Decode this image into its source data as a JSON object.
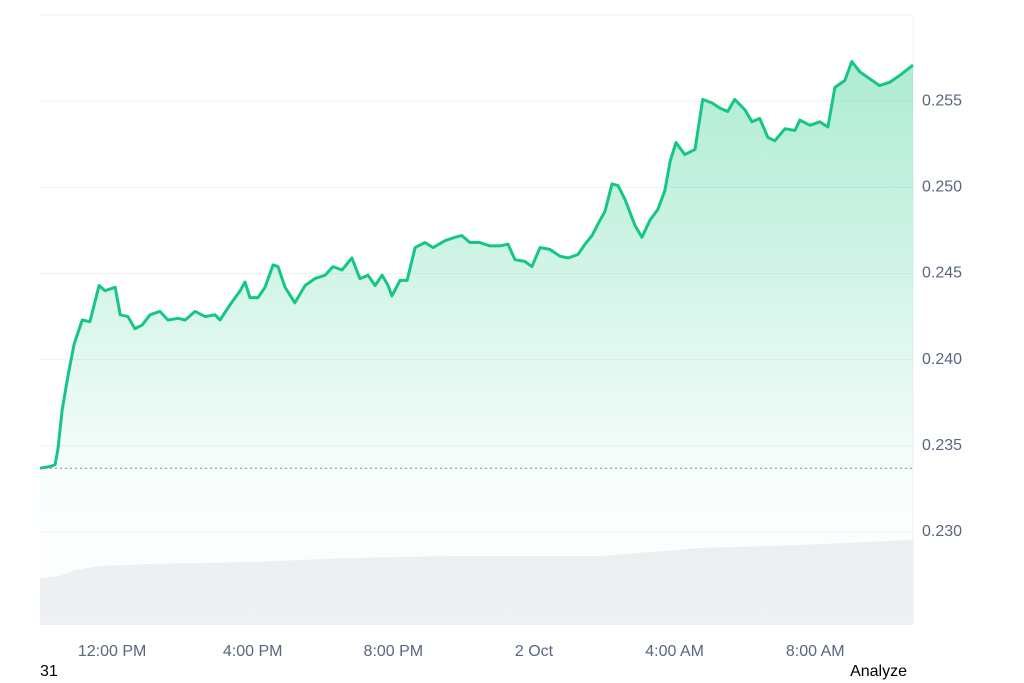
{
  "chart_data": {
    "type": "line",
    "x": [
      9.95,
      10.24,
      10.38,
      10.46,
      10.58,
      10.75,
      10.92,
      11.15,
      11.37,
      11.63,
      11.8,
      12.09,
      12.23,
      12.45,
      12.65,
      12.85,
      13.08,
      13.36,
      13.59,
      13.88,
      14.08,
      14.36,
      14.65,
      14.93,
      15.07,
      15.36,
      15.64,
      15.78,
      15.92,
      16.15,
      16.35,
      16.58,
      16.72,
      16.92,
      17.2,
      17.49,
      17.77,
      18.06,
      18.28,
      18.54,
      18.82,
      19.05,
      19.28,
      19.48,
      19.68,
      19.85,
      19.96,
      20.19,
      20.39,
      20.62,
      20.9,
      21.13,
      21.47,
      21.75,
      21.95,
      22.18,
      22.46,
      22.75,
      23.03,
      23.26,
      23.46,
      23.74,
      23.94,
      24.17,
      24.45,
      24.74,
      24.97,
      25.25,
      25.45,
      25.65,
      25.88,
      26.02,
      26.22,
      26.39,
      26.59,
      26.87,
      27.07,
      27.3,
      27.52,
      27.72,
      27.87,
      28.04,
      28.29,
      28.58,
      28.8,
      29.06,
      29.29,
      29.51,
      29.71,
      30.0,
      30.2,
      30.42,
      30.65,
      30.85,
      31.14,
      31.42,
      31.56,
      31.85,
      32.13,
      32.36,
      32.56,
      32.84,
      33.04,
      33.27,
      33.55,
      33.83,
      34.12,
      34.41,
      34.78
    ],
    "series": [
      {
        "color": "#16c784",
        "values": [
          0.2337,
          0.2338,
          0.2339,
          0.2348,
          0.2371,
          0.2391,
          0.2409,
          0.2423,
          0.2422,
          0.2443,
          0.244,
          0.2442,
          0.2426,
          0.2425,
          0.2418,
          0.242,
          0.2426,
          0.2428,
          0.2423,
          0.2424,
          0.2423,
          0.2428,
          0.2425,
          0.2426,
          0.2423,
          0.2432,
          0.244,
          0.2445,
          0.2436,
          0.2436,
          0.2442,
          0.2455,
          0.2454,
          0.2442,
          0.2433,
          0.2443,
          0.2447,
          0.2449,
          0.2454,
          0.2452,
          0.2459,
          0.2447,
          0.2449,
          0.2443,
          0.2449,
          0.2443,
          0.2437,
          0.2446,
          0.2446,
          0.2465,
          0.2468,
          0.2465,
          0.2469,
          0.2471,
          0.2472,
          0.2468,
          0.2468,
          0.2466,
          0.2466,
          0.2467,
          0.2458,
          0.2457,
          0.2454,
          0.2465,
          0.2464,
          0.246,
          0.2459,
          0.2461,
          0.2467,
          0.2472,
          0.2481,
          0.2486,
          0.2502,
          0.2501,
          0.2493,
          0.2478,
          0.2471,
          0.2481,
          0.2487,
          0.2498,
          0.2515,
          0.2526,
          0.2519,
          0.2522,
          0.2551,
          0.2549,
          0.2546,
          0.2544,
          0.2551,
          0.2545,
          0.2538,
          0.254,
          0.2529,
          0.2527,
          0.2534,
          0.2533,
          0.2539,
          0.2536,
          0.2538,
          0.2535,
          0.2558,
          0.2562,
          0.2573,
          0.2567,
          0.2563,
          0.2559,
          0.2561,
          0.2565,
          0.2571
        ]
      }
    ],
    "reference_line": 0.2337,
    "xlim": [
      9.95,
      34.78
    ],
    "xticks": [
      {
        "value": 12,
        "label": "12:00 PM"
      },
      {
        "value": 16,
        "label": "4:00 PM"
      },
      {
        "value": 20,
        "label": "8:00 PM"
      },
      {
        "value": 24,
        "label": "2 Oct"
      },
      {
        "value": 28,
        "label": "4:00 AM"
      },
      {
        "value": 32,
        "label": "8:00 AM"
      }
    ],
    "ylim": [
      0.2246,
      0.26
    ],
    "yticks": [
      {
        "value": 0.23,
        "label": "0.230"
      },
      {
        "value": 0.235,
        "label": "0.235"
      },
      {
        "value": 0.24,
        "label": "0.240"
      },
      {
        "value": 0.245,
        "label": "0.245"
      },
      {
        "value": 0.25,
        "label": "0.250"
      },
      {
        "value": 0.255,
        "label": "0.255"
      }
    ],
    "grid": true,
    "start_label": "31",
    "action": "Analyze"
  }
}
